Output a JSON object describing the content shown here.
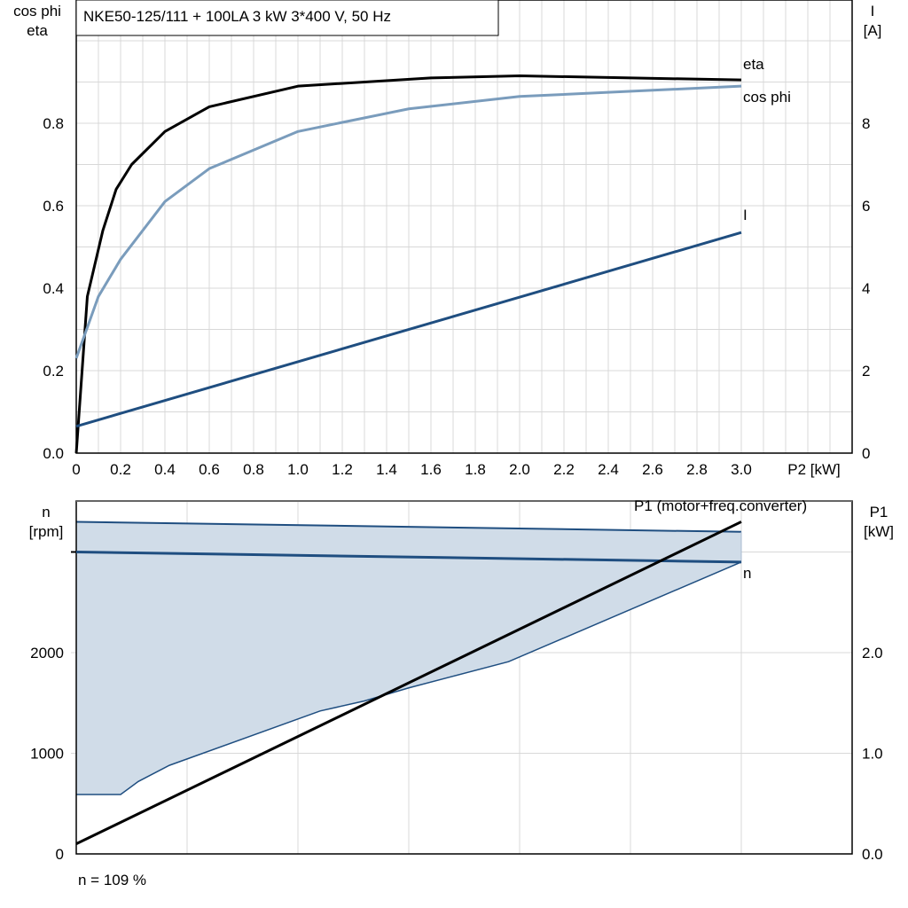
{
  "chart_data": [
    {
      "type": "line",
      "title": "NKE50-125/111 + 100LA   3 kW   3*400 V, 50 Hz",
      "xlabel": "P2 [kW]",
      "ylabel": "cos phi\neta",
      "y2label": "I\n[A]",
      "xlim": [
        0,
        3.5
      ],
      "ylim": [
        0,
        1
      ],
      "y2lim": [
        0,
        10.75
      ],
      "grid": true,
      "xticks": [
        "0",
        "0.2",
        "0.4",
        "0.6",
        "0.8",
        "1.0",
        "1.2",
        "1.4",
        "1.6",
        "1.8",
        "2.0",
        "2.2",
        "2.4",
        "2.6",
        "2.8",
        "3.0"
      ],
      "yticks": [
        "0.0",
        "0.2",
        "0.4",
        "0.6",
        "0.8"
      ],
      "y2ticks": [
        "0",
        "2",
        "4",
        "6",
        "8"
      ],
      "series": [
        {
          "name": "eta",
          "axis": "left",
          "color": "#000000",
          "x": [
            0,
            0.05,
            0.12,
            0.18,
            0.25,
            0.4,
            0.6,
            1.0,
            1.6,
            2.0,
            3.0
          ],
          "y": [
            0,
            0.38,
            0.54,
            0.64,
            0.7,
            0.78,
            0.84,
            0.89,
            0.91,
            0.915,
            0.905
          ]
        },
        {
          "name": "cos phi",
          "axis": "left",
          "color": "#7a9cbc",
          "x": [
            0,
            0.1,
            0.2,
            0.4,
            0.6,
            1.0,
            1.5,
            2.0,
            3.0
          ],
          "y": [
            0.23,
            0.38,
            0.47,
            0.61,
            0.69,
            0.78,
            0.835,
            0.865,
            0.89
          ]
        },
        {
          "name": "I",
          "axis": "right",
          "color": "#1f4e80",
          "x": [
            0,
            3.0
          ],
          "y": [
            0.65,
            5.35
          ]
        }
      ]
    },
    {
      "type": "line",
      "xlim": [
        0,
        3.5
      ],
      "ylabel": "n\n[rpm]",
      "y2label": "P1\n[kW]",
      "ylim": [
        0,
        3500
      ],
      "y2lim": [
        0,
        3.5
      ],
      "grid": true,
      "yticks": [
        "0",
        "1000",
        "2000"
      ],
      "y2ticks": [
        "0.0",
        "1.0",
        "2.0"
      ],
      "band": {
        "color": "#d0dce8",
        "upper": {
          "x": [
            0,
            3.0
          ],
          "y": [
            3300,
            3200
          ]
        },
        "lower": {
          "x": [
            0,
            0.2,
            0.28,
            0.42,
            1.1,
            1.3,
            1.5,
            1.95,
            3.0
          ],
          "y": [
            590,
            590,
            720,
            880,
            1420,
            1520,
            1650,
            1910,
            2900
          ]
        }
      },
      "series": [
        {
          "name": "n",
          "axis": "left",
          "color": "#1f4e80",
          "x": [
            0,
            3.0
          ],
          "y": [
            3000,
            2900
          ]
        },
        {
          "name": "P1 (motor+freq.converter)",
          "axis": "right",
          "color": "#000000",
          "x": [
            0,
            3.0
          ],
          "y": [
            0.1,
            3.3
          ]
        }
      ],
      "note": "n = 109 %"
    }
  ]
}
